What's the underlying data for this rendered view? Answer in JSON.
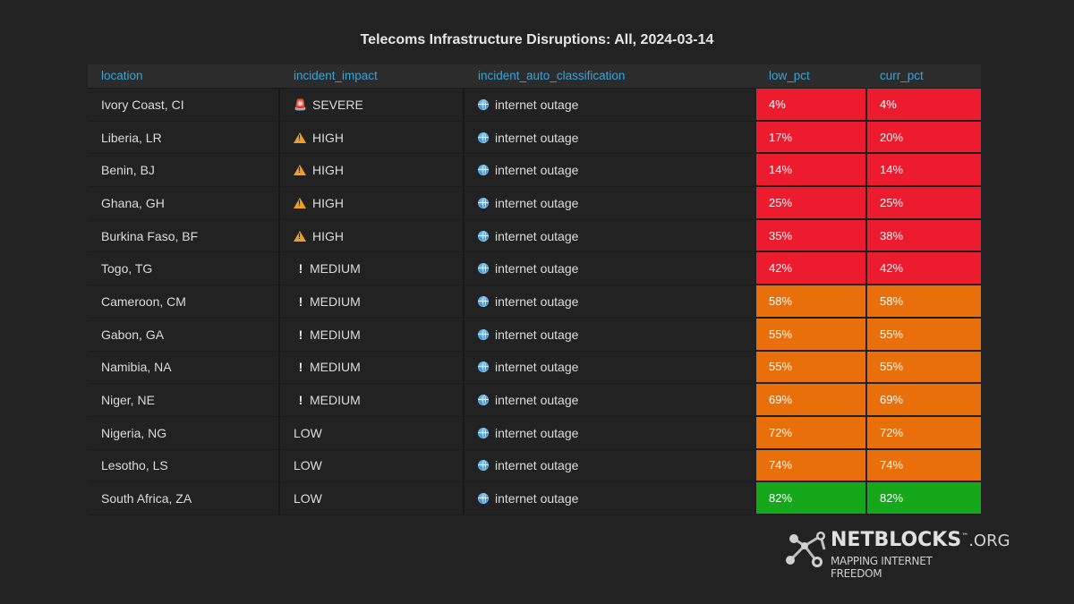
{
  "title": "Telecoms Infrastructure Disruptions: All, 2024-03-14",
  "columns": [
    "location",
    "incident_impact",
    "incident_auto_classification",
    "low_pct",
    "curr_pct"
  ],
  "colors": {
    "red": "#ec1c2e",
    "orange": "#e96f0a",
    "green": "#14a81a",
    "header_text": "#3aa3d8"
  },
  "rows": [
    {
      "location": "Ivory Coast, CI",
      "impact": "SEVERE",
      "impact_icon": "siren-icon",
      "classification": "internet outage",
      "low_pct": "4%",
      "curr_pct": "4%",
      "level": "red"
    },
    {
      "location": "Liberia, LR",
      "impact": "HIGH",
      "impact_icon": "warning-icon",
      "classification": "internet outage",
      "low_pct": "17%",
      "curr_pct": "20%",
      "level": "red"
    },
    {
      "location": "Benin, BJ",
      "impact": "HIGH",
      "impact_icon": "warning-icon",
      "classification": "internet outage",
      "low_pct": "14%",
      "curr_pct": "14%",
      "level": "red"
    },
    {
      "location": "Ghana, GH",
      "impact": "HIGH",
      "impact_icon": "warning-icon",
      "classification": "internet outage",
      "low_pct": "25%",
      "curr_pct": "25%",
      "level": "red"
    },
    {
      "location": "Burkina Faso, BF",
      "impact": "HIGH",
      "impact_icon": "warning-icon",
      "classification": "internet outage",
      "low_pct": "35%",
      "curr_pct": "38%",
      "level": "red"
    },
    {
      "location": "Togo, TG",
      "impact": "MEDIUM",
      "impact_icon": "exclamation-icon",
      "classification": "internet outage",
      "low_pct": "42%",
      "curr_pct": "42%",
      "level": "red"
    },
    {
      "location": "Cameroon, CM",
      "impact": "MEDIUM",
      "impact_icon": "exclamation-icon",
      "classification": "internet outage",
      "low_pct": "58%",
      "curr_pct": "58%",
      "level": "orange"
    },
    {
      "location": "Gabon, GA",
      "impact": "MEDIUM",
      "impact_icon": "exclamation-icon",
      "classification": "internet outage",
      "low_pct": "55%",
      "curr_pct": "55%",
      "level": "orange"
    },
    {
      "location": "Namibia, NA",
      "impact": "MEDIUM",
      "impact_icon": "exclamation-icon",
      "classification": "internet outage",
      "low_pct": "55%",
      "curr_pct": "55%",
      "level": "orange"
    },
    {
      "location": "Niger, NE",
      "impact": "MEDIUM",
      "impact_icon": "exclamation-icon",
      "classification": "internet outage",
      "low_pct": "69%",
      "curr_pct": "69%",
      "level": "orange"
    },
    {
      "location": "Nigeria, NG",
      "impact": "LOW",
      "impact_icon": "",
      "classification": "internet outage",
      "low_pct": "72%",
      "curr_pct": "72%",
      "level": "orange"
    },
    {
      "location": "Lesotho, LS",
      "impact": "LOW",
      "impact_icon": "",
      "classification": "internet outage",
      "low_pct": "74%",
      "curr_pct": "74%",
      "level": "orange"
    },
    {
      "location": "South Africa, ZA",
      "impact": "LOW",
      "impact_icon": "",
      "classification": "internet outage",
      "low_pct": "82%",
      "curr_pct": "82%",
      "level": "green"
    }
  ],
  "logo": {
    "name": "NETBLOCKS",
    "suffix": ".ORG",
    "tm": "™",
    "tagline": "MAPPING INTERNET FREEDOM"
  }
}
